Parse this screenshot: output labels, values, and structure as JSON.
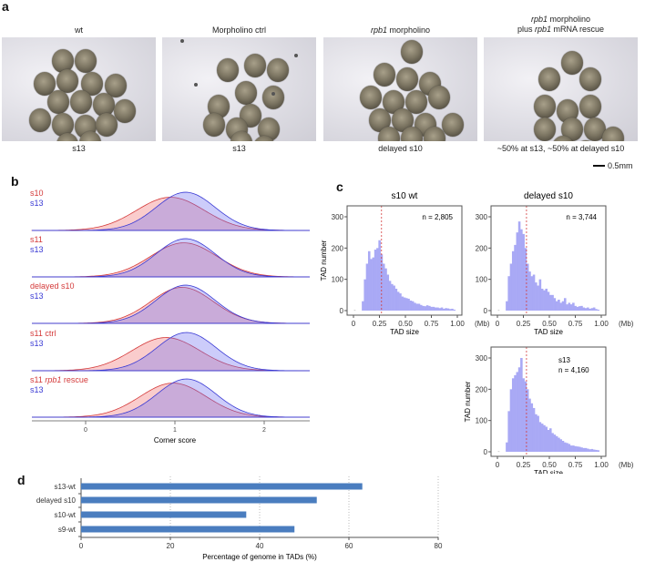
{
  "panel_a": {
    "label": "a",
    "conditions": [
      {
        "title": "wt",
        "title_italic": "",
        "title_line2": "",
        "stage": "s13"
      },
      {
        "title": "Morpholino ctrl",
        "title_italic": "",
        "title_line2": "",
        "stage": "s13"
      },
      {
        "title": " morpholino",
        "title_italic": "rpb1",
        "title_line2": "",
        "stage": "delayed s10"
      },
      {
        "title": " morpholino",
        "title_italic": "rpb1",
        "title_line2": {
          "pre": "plus ",
          "italic": "rpb1",
          "post": " mRNA rescue"
        },
        "stage": "~50% at s13, ~50% at delayed s10"
      }
    ],
    "scale_bar": "0.5mm"
  },
  "panel_b": {
    "label": "b"
  },
  "panel_c": {
    "label": "c"
  },
  "panel_d": {
    "label": "d"
  },
  "chart_data": [
    {
      "type": "ridgeline-density",
      "panel": "b",
      "xlabel": "Corner score",
      "xticks": [
        0,
        1,
        2
      ],
      "xlim": [
        -0.6,
        2.5
      ],
      "colors": {
        "red": "#d43a3a",
        "blue": "#3a3ad4"
      },
      "rows": [
        {
          "red_label": "s10",
          "red_italic": "",
          "red_post": "",
          "blue_label": "s13",
          "red": {
            "mean": 0.95,
            "sd": 0.38
          },
          "blue": {
            "mean": 1.12,
            "sd": 0.33
          }
        },
        {
          "red_label": "s11",
          "red_italic": "",
          "red_post": "",
          "blue_label": "s13",
          "red": {
            "mean": 1.1,
            "sd": 0.37
          },
          "blue": {
            "mean": 1.12,
            "sd": 0.33
          }
        },
        {
          "red_label": "delayed s10",
          "red_italic": "",
          "red_post": "",
          "blue_label": "s13",
          "red": {
            "mean": 1.08,
            "sd": 0.35
          },
          "blue": {
            "mean": 1.12,
            "sd": 0.33
          }
        },
        {
          "red_label": "s11 ctrl",
          "red_italic": "",
          "red_post": "",
          "blue_label": "s13",
          "red": {
            "mean": 0.9,
            "sd": 0.38
          },
          "blue": {
            "mean": 1.13,
            "sd": 0.33
          }
        },
        {
          "red_label": "s11 ",
          "red_italic": "rpb1",
          "red_post": " rescue",
          "blue_label": "s13",
          "red": {
            "mean": 0.98,
            "sd": 0.37
          },
          "blue": {
            "mean": 1.13,
            "sd": 0.33
          }
        }
      ]
    },
    {
      "type": "histogram",
      "panel": "c",
      "ylabel": "TAD number",
      "xlabel": "TAD size",
      "x_unit": "(Mb)",
      "xticks": [
        "0",
        "0.25",
        "0.50",
        "0.75",
        "1.00"
      ],
      "yticks": [
        0,
        100,
        200,
        300
      ],
      "xlim": [
        0,
        1.0
      ],
      "ylim": [
        0,
        320
      ],
      "bin_start": 0.08,
      "bin_width": 0.02,
      "bar_color": "#a9a9f5",
      "median_color": "#d43a3a",
      "plots": [
        {
          "title": "s10 wt",
          "inset": "",
          "n": "n = 2,805",
          "median": 0.27,
          "counts": [
            30,
            100,
            150,
            190,
            165,
            170,
            195,
            200,
            225,
            180,
            150,
            135,
            115,
            95,
            85,
            80,
            70,
            60,
            55,
            45,
            42,
            40,
            38,
            32,
            30,
            25,
            22,
            22,
            18,
            15,
            14,
            17,
            15,
            12,
            12,
            10,
            10,
            8,
            10,
            6,
            8,
            7,
            5,
            6,
            3
          ]
        },
        {
          "title": "delayed s10",
          "inset": "",
          "n": "n = 3,744",
          "median": 0.28,
          "counts": [
            30,
            110,
            150,
            190,
            210,
            250,
            285,
            260,
            245,
            200,
            150,
            125,
            110,
            115,
            90,
            80,
            100,
            70,
            65,
            70,
            60,
            50,
            50,
            40,
            30,
            35,
            25,
            30,
            40,
            20,
            25,
            20,
            25,
            15,
            12,
            14,
            15,
            10,
            8,
            10,
            6,
            8,
            10,
            5,
            3
          ]
        },
        {
          "title": "",
          "inset": "s13",
          "n": "n = 4,160",
          "median": 0.28,
          "counts": [
            30,
            130,
            200,
            235,
            245,
            255,
            270,
            300,
            235,
            225,
            200,
            170,
            155,
            140,
            120,
            115,
            95,
            90,
            85,
            80,
            70,
            75,
            60,
            55,
            50,
            45,
            40,
            35,
            30,
            28,
            25,
            20,
            20,
            18,
            17,
            16,
            14,
            12,
            12,
            10,
            8,
            9,
            7,
            6,
            5
          ]
        }
      ]
    },
    {
      "type": "bar",
      "orientation": "horizontal",
      "panel": "d",
      "categories": [
        "s13-wt",
        "delayed s10",
        "s10-wt",
        "s9-wt"
      ],
      "values": [
        63,
        52.8,
        37,
        47.8
      ],
      "xlabel": "Percentage of genome in TADs (%)",
      "xticks": [
        0,
        20,
        40,
        60,
        80
      ],
      "xlim": [
        0,
        80
      ],
      "grid": "vertical dotted",
      "bar_color": "#4a7dbf"
    }
  ]
}
